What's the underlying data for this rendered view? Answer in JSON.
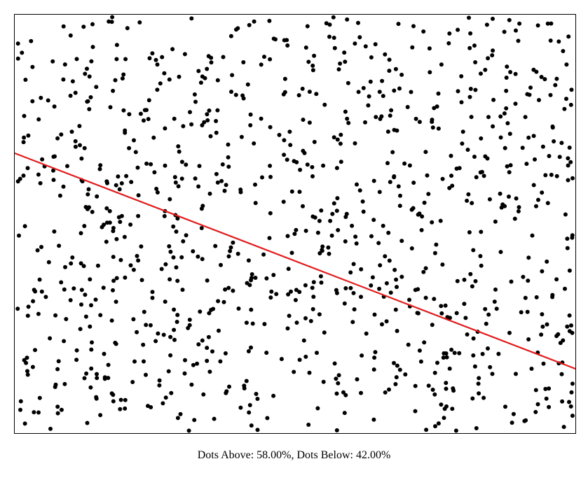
{
  "result": {
    "above_label": "Dots Above: ",
    "above_value": "58.00%",
    "separator": ", ",
    "below_label": "Dots Below: ",
    "below_value": "42.00%"
  },
  "board": {
    "dot_color": "#000000",
    "line_color": "#e31b1b",
    "dot_count": 1000,
    "dots_above_fraction": 0.58,
    "dots_below_fraction": 0.42
  }
}
